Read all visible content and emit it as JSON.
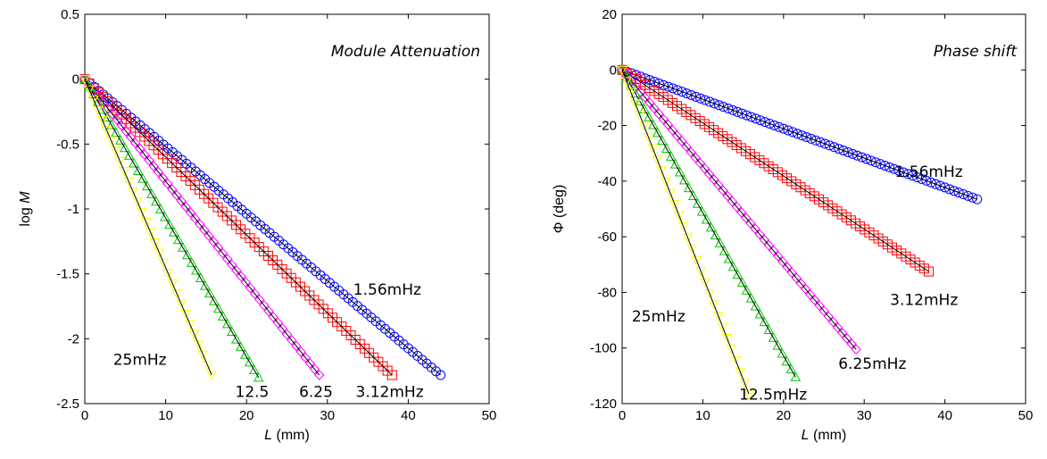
{
  "chart_data": [
    {
      "type": "scatter",
      "title": "Module Attenuation",
      "xlabel_var": "L",
      "xlabel_unit": "(mm)",
      "ylabel_prefix": "log ",
      "ylabel_var": "M",
      "xlim": [
        0,
        50
      ],
      "ylim": [
        -2.5,
        0.5
      ],
      "xticks": [
        0,
        10,
        20,
        30,
        40,
        50
      ],
      "yticks": [
        0.5,
        0,
        -0.5,
        -1,
        -1.5,
        -2,
        -2.5
      ],
      "ytick_labels": [
        "0.5",
        "0",
        "-0.5",
        "-1",
        "-1.5",
        "-2",
        "-2.5"
      ],
      "grid": false,
      "series": [
        {
          "marker": "circle",
          "color": "#0000ff",
          "x_end": 44,
          "y_end": -2.28,
          "count": 78
        },
        {
          "marker": "square",
          "color": "#ff0000",
          "x_end": 38,
          "y_end": -2.28,
          "count": 68
        },
        {
          "marker": "diamond",
          "color": "#ff00ff",
          "x_end": 29,
          "y_end": -2.28,
          "count": 52
        },
        {
          "marker": "triangle-up",
          "color": "#00cc00",
          "x_end": 21.5,
          "y_end": -2.3,
          "count": 40
        },
        {
          "marker": "triangle-down",
          "color": "#ffff00",
          "x_end": 15.7,
          "y_end": -2.28,
          "count": 30
        }
      ],
      "annotations": [
        {
          "text": "1.56mHz",
          "x": 33.2,
          "y": -1.66
        },
        {
          "text": "3.12mHz",
          "x": 33.5,
          "y": -2.45
        },
        {
          "text": "6.25",
          "x": 26.5,
          "y": -2.45
        },
        {
          "text": "12.5",
          "x": 18.6,
          "y": -2.45
        },
        {
          "text": "25mHz",
          "x": 3.5,
          "y": -2.2
        }
      ]
    },
    {
      "type": "scatter",
      "title": "Phase shift",
      "xlabel_var": "L",
      "xlabel_unit": "(mm)",
      "ylabel_prefix": "Φ (deg)",
      "ylabel_var": "",
      "xlim": [
        0,
        50
      ],
      "ylim": [
        -120,
        20
      ],
      "xticks": [
        0,
        10,
        20,
        30,
        40,
        50
      ],
      "yticks": [
        20,
        0,
        -20,
        -40,
        -60,
        -80,
        -100,
        -120
      ],
      "ytick_labels": [
        "20",
        "0",
        "-20",
        "-40",
        "-60",
        "-80",
        "-100",
        "-120"
      ],
      "grid": false,
      "series": [
        {
          "marker": "circle",
          "color": "#0000ff",
          "x_end": 44,
          "y_end": -46.5,
          "count": 78
        },
        {
          "marker": "square",
          "color": "#ff0000",
          "x_end": 38,
          "y_end": -72.5,
          "count": 68
        },
        {
          "marker": "diamond",
          "color": "#ff00ff",
          "x_end": 29,
          "y_end": -100.5,
          "count": 52
        },
        {
          "marker": "triangle-up",
          "color": "#00cc00",
          "x_end": 21.5,
          "y_end": -110.5,
          "count": 40
        },
        {
          "marker": "triangle-down",
          "color": "#ffff00",
          "x_end": 15.7,
          "y_end": -116.5,
          "count": 30
        }
      ],
      "annotations": [
        {
          "text": "1.56mHz",
          "x": 33.8,
          "y": -38.5
        },
        {
          "text": "3.12mHz",
          "x": 33.2,
          "y": -84.5
        },
        {
          "text": "6.25mHz",
          "x": 26.8,
          "y": -107.5
        },
        {
          "text": "12.5mHz",
          "x": 14.5,
          "y": -118.5
        },
        {
          "text": "25mHz",
          "x": 1.2,
          "y": -90.5
        }
      ]
    }
  ]
}
